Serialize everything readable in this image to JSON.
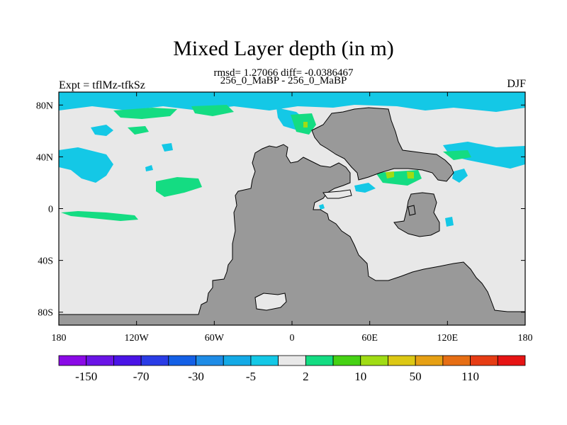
{
  "title": "Mixed Layer depth (in m)",
  "stats_text": "rmsd= 1.27066 diff= -0.0386467",
  "subtitle": "256_0_MaBP - 256_0_MaBP",
  "experiment_label": "Expt = tflMz-tfkSz",
  "season": "DJF",
  "map": {
    "lon_range": [
      -180,
      180
    ],
    "lat_range": [
      -90,
      90
    ],
    "ocean_color": "#e8e8e8",
    "land_color": "#999999",
    "lon_ticks": [
      {
        "lon": -180,
        "label": "180"
      },
      {
        "lon": -120,
        "label": "120W"
      },
      {
        "lon": -60,
        "label": "60W"
      },
      {
        "lon": 0,
        "label": "0"
      },
      {
        "lon": 60,
        "label": "60E"
      },
      {
        "lon": 120,
        "label": "120E"
      },
      {
        "lon": 180,
        "label": "180"
      }
    ],
    "lat_ticks": [
      {
        "lat": 80,
        "label": "80N"
      },
      {
        "lat": 40,
        "label": "40N"
      },
      {
        "lat": 0,
        "label": "0"
      },
      {
        "lat": -40,
        "label": "40S"
      },
      {
        "lat": -80,
        "label": "80S"
      }
    ]
  },
  "colorbar": {
    "colors": [
      "#8a0ae6",
      "#6a14e6",
      "#4a14e6",
      "#2a3ce6",
      "#1460e6",
      "#1e8ce6",
      "#14aae6",
      "#14c8e6",
      "#e8e8e8",
      "#14dc82",
      "#46d214",
      "#a0dc14",
      "#dcc814",
      "#e6a014",
      "#e66e14",
      "#e63c14",
      "#e61414"
    ],
    "labels": [
      {
        "after_box": 1,
        "text": "-150"
      },
      {
        "after_box": 3,
        "text": "-70"
      },
      {
        "after_box": 5,
        "text": "-30"
      },
      {
        "after_box": 7,
        "text": "-5"
      },
      {
        "after_box": 9,
        "text": "2"
      },
      {
        "after_box": 11,
        "text": "10"
      },
      {
        "after_box": 13,
        "text": "50"
      },
      {
        "after_box": 15,
        "text": "110"
      }
    ]
  }
}
